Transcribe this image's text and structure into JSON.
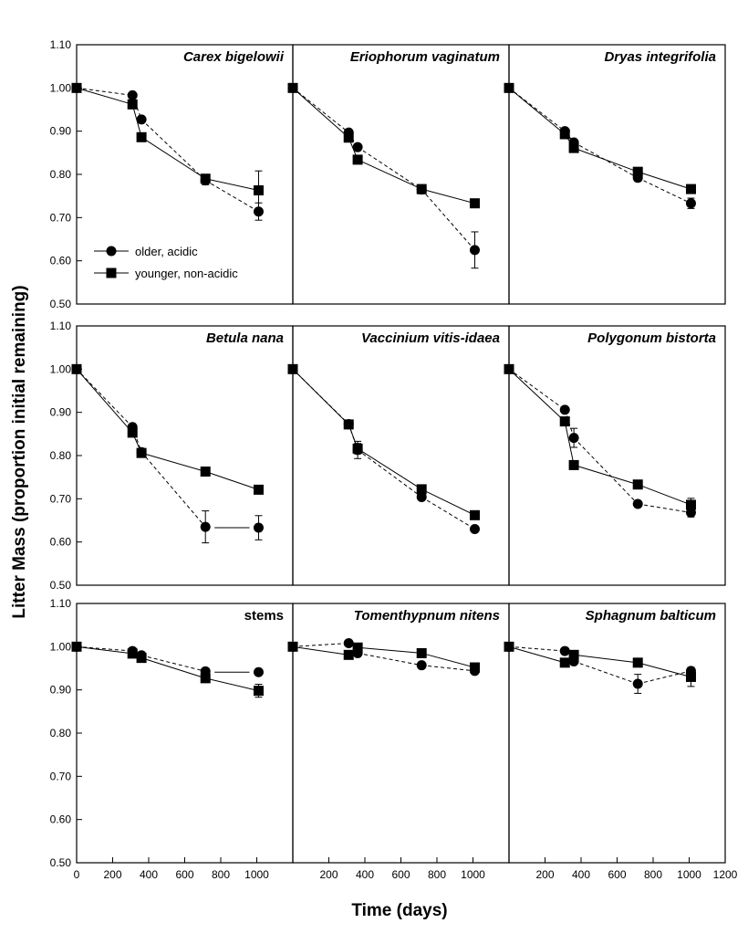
{
  "chart_data": {
    "type": "line",
    "ylabel": "Litter Mass (proportion initial remaining)",
    "xlabel": "Time (days)",
    "xlim": [
      0,
      1200
    ],
    "ylim": [
      0.5,
      1.1
    ],
    "xticks": [
      "0",
      "200",
      "400",
      "600",
      "800",
      "1000",
      "1200"
    ],
    "yticks": [
      "0.50",
      "0.60",
      "0.70",
      "0.80",
      "0.90",
      "1.00",
      "1.10"
    ],
    "legend": {
      "position": "top-left panel, lower-left",
      "entries": [
        {
          "name": "older, acidic",
          "marker": "circle"
        },
        {
          "name": "younger, non-acidic",
          "marker": "square"
        }
      ]
    },
    "panels": [
      {
        "title": "Carex bigelowii",
        "italic": true,
        "series": [
          {
            "name": "older, acidic",
            "marker": "circle",
            "x": [
              0,
              310,
              360,
              715,
              1010
            ],
            "y": [
              1.0,
              0.983,
              0.927,
              0.786,
              0.714
            ],
            "err": [
              0,
              0,
              0,
              0.01,
              0.02
            ]
          },
          {
            "name": "younger, non-acidic",
            "marker": "square",
            "x": [
              0,
              310,
              360,
              715,
              1010
            ],
            "y": [
              1.0,
              0.962,
              0.886,
              0.79,
              0.763
            ],
            "err": [
              0,
              0,
              0,
              0.01,
              0.045
            ]
          }
        ]
      },
      {
        "title": "Eriophorum vaginatum",
        "italic": true,
        "series": [
          {
            "name": "older, acidic",
            "marker": "circle",
            "x": [
              0,
              310,
              360,
              715,
              1010
            ],
            "y": [
              1.0,
              0.897,
              0.863,
              0.765,
              0.625
            ],
            "err": [
              0,
              0,
              0,
              0.01,
              0.042
            ]
          },
          {
            "name": "younger, non-acidic",
            "marker": "square",
            "x": [
              0,
              310,
              360,
              715,
              1010
            ],
            "y": [
              1.0,
              0.885,
              0.834,
              0.766,
              0.733
            ],
            "err": [
              0,
              0,
              0,
              0.01,
              0.01
            ]
          }
        ]
      },
      {
        "title": "Dryas integrifolia",
        "italic": true,
        "series": [
          {
            "name": "older, acidic",
            "marker": "circle",
            "x": [
              0,
              310,
              360,
              715,
              1010
            ],
            "y": [
              1.0,
              0.9,
              0.874,
              0.792,
              0.733
            ],
            "err": [
              0,
              0,
              0,
              0.008,
              0.012
            ]
          },
          {
            "name": "younger, non-acidic",
            "marker": "square",
            "x": [
              0,
              310,
              360,
              715,
              1010
            ],
            "y": [
              1.0,
              0.893,
              0.861,
              0.806,
              0.766
            ],
            "err": [
              0,
              0,
              0,
              0,
              0
            ]
          }
        ]
      },
      {
        "title": "Betula nana",
        "italic": true,
        "series": [
          {
            "name": "older, acidic",
            "marker": "circle",
            "x": [
              0,
              310,
              360,
              715,
              1010
            ],
            "y": [
              1.0,
              0.866,
              0.808,
              0.635,
              0.633
            ],
            "err": [
              0,
              0,
              0,
              0.037,
              0.028
            ],
            "gapAfter": 3
          },
          {
            "name": "younger, non-acidic",
            "marker": "square",
            "x": [
              0,
              310,
              360,
              715,
              1010
            ],
            "y": [
              1.0,
              0.853,
              0.806,
              0.763,
              0.721
            ],
            "err": [
              0,
              0,
              0,
              0,
              0
            ]
          }
        ]
      },
      {
        "title": "Vaccinium vitis-idaea",
        "italic": true,
        "series": [
          {
            "name": "older, acidic",
            "marker": "circle",
            "x": [
              0,
              310,
              360,
              715,
              1010
            ],
            "y": [
              1.0,
              0.873,
              0.813,
              0.704,
              0.63
            ],
            "err": [
              0,
              0,
              0.02,
              0,
              0
            ]
          },
          {
            "name": "younger, non-acidic",
            "marker": "square",
            "x": [
              0,
              310,
              360,
              715,
              1010
            ],
            "y": [
              1.0,
              0.872,
              0.816,
              0.722,
              0.662
            ],
            "err": [
              0,
              0,
              0.012,
              0,
              0
            ]
          }
        ]
      },
      {
        "title": "Polygonum bistorta",
        "italic": true,
        "series": [
          {
            "name": "older, acidic",
            "marker": "circle",
            "x": [
              0,
              310,
              360,
              715,
              1010
            ],
            "y": [
              1.0,
              0.906,
              0.841,
              0.688,
              0.668
            ],
            "err": [
              0,
              0,
              0.022,
              0,
              0.01
            ]
          },
          {
            "name": "younger, non-acidic",
            "marker": "square",
            "x": [
              0,
              310,
              360,
              715,
              1010
            ],
            "y": [
              1.0,
              0.879,
              0.778,
              0.733,
              0.686
            ],
            "err": [
              0,
              0,
              0,
              0,
              0.015
            ]
          }
        ]
      },
      {
        "title": "stems",
        "italic": false,
        "series": [
          {
            "name": "older, acidic",
            "marker": "circle",
            "x": [
              0,
              310,
              360,
              715,
              1010
            ],
            "y": [
              1.0,
              0.99,
              0.98,
              0.943,
              0.941
            ],
            "err": [
              0,
              0,
              0,
              0,
              0
            ],
            "gapAfter": 3
          },
          {
            "name": "younger, non-acidic",
            "marker": "square",
            "x": [
              0,
              310,
              360,
              715,
              1010
            ],
            "y": [
              1.0,
              0.984,
              0.974,
              0.927,
              0.898
            ],
            "err": [
              0,
              0,
              0,
              0,
              0.015
            ]
          }
        ]
      },
      {
        "title": "Tomenthypnum nitens",
        "italic": true,
        "series": [
          {
            "name": "older, acidic",
            "marker": "circle",
            "x": [
              0,
              310,
              360,
              715,
              1010
            ],
            "y": [
              1.0,
              1.008,
              0.985,
              0.957,
              0.944
            ],
            "err": [
              0,
              0,
              0,
              0,
              0
            ]
          },
          {
            "name": "younger, non-acidic",
            "marker": "square",
            "x": [
              0,
              310,
              360,
              715,
              1010
            ],
            "y": [
              1.0,
              0.981,
              0.998,
              0.985,
              0.952
            ],
            "err": [
              0,
              0,
              0,
              0,
              0
            ]
          }
        ]
      },
      {
        "title": "Sphagnum balticum",
        "italic": true,
        "series": [
          {
            "name": "older, acidic",
            "marker": "circle",
            "x": [
              0,
              310,
              360,
              715,
              1010
            ],
            "y": [
              1.0,
              0.99,
              0.966,
              0.914,
              0.944
            ],
            "err": [
              0,
              0,
              0,
              0.022,
              0
            ]
          },
          {
            "name": "younger, non-acidic",
            "marker": "square",
            "x": [
              0,
              310,
              360,
              715,
              1010
            ],
            "y": [
              1.0,
              0.963,
              0.981,
              0.963,
              0.93
            ],
            "err": [
              0,
              0,
              0,
              0,
              0.022
            ]
          }
        ]
      }
    ]
  }
}
